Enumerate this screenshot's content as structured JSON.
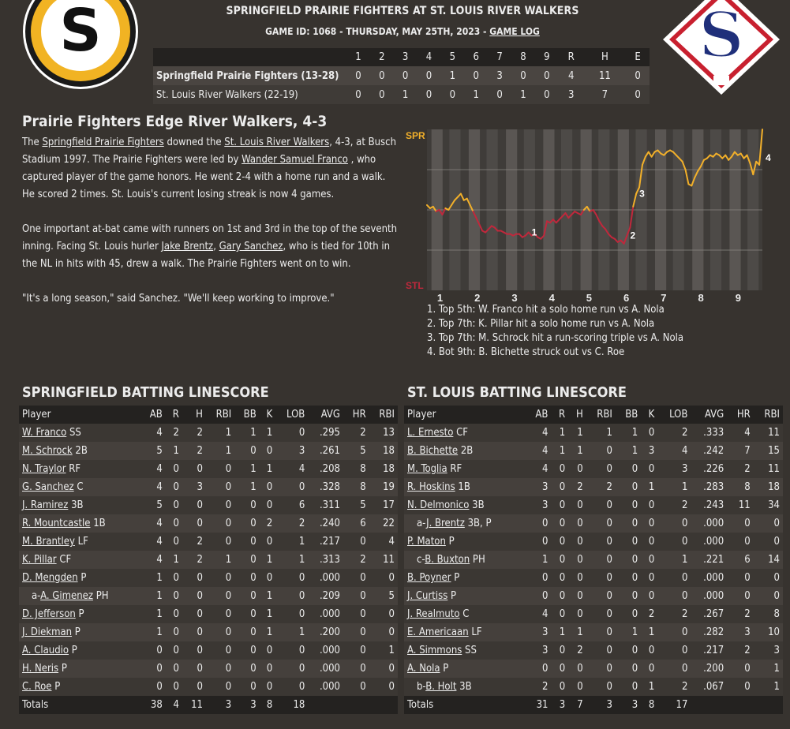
{
  "header": {
    "title": "SPRINGFIELD PRAIRIE FIGHTERS AT ST. LOUIS RIVER WALKERS",
    "subtitle_prefix": "GAME ID: 1068 - THURSDAY, MAY 25TH, 2023 - ",
    "game_log_link": "GAME LOG",
    "left_logo_letter": "S",
    "right_logo_letter": "S"
  },
  "linescore": {
    "columns": [
      "",
      "1",
      "2",
      "3",
      "4",
      "5",
      "6",
      "7",
      "8",
      "9",
      "R",
      "H",
      "E"
    ],
    "rows": [
      {
        "team": "Springfield Prairie Fighters (13-28)",
        "cells": [
          "0",
          "0",
          "0",
          "0",
          "1",
          "0",
          "3",
          "0",
          "0",
          "4",
          "11",
          "0"
        ]
      },
      {
        "team": "St. Louis River Walkers (22-19)",
        "cells": [
          "0",
          "0",
          "1",
          "0",
          "0",
          "1",
          "0",
          "1",
          "0",
          "3",
          "7",
          "0"
        ]
      }
    ]
  },
  "story": {
    "headline": "Prairie Fighters Edge River Walkers, 4-3",
    "p1": [
      "The ",
      "Springfield Prairie Fighters",
      " downed the ",
      "St. Louis River Walkers",
      ", 4-3, at Busch Stadium 1997. The Prairie Fighters were led by ",
      "Wander Samuel Franco",
      " , who captured player of the game honors. He went 2-4 with a home run and a walk. He scored 2 times. St. Louis's current losing streak is now 4 games."
    ],
    "p2": [
      "One important at-bat came with runners on 1st and 3rd in the top of the seventh inning. Facing St. Louis hurler ",
      "Jake Brentz",
      ", ",
      "Gary Sanchez",
      ", who is tied for 10th in the NL in hits with 45, drew a walk. The Prairie Fighters went on to win."
    ],
    "p3": "\"It's a long season,\" said Sanchez. \"We'll keep working to improve.\""
  },
  "chart_data": {
    "type": "line",
    "title": "",
    "top_label": "SPR",
    "bottom_label": "STL",
    "innings": [
      "1",
      "2",
      "3",
      "4",
      "5",
      "6",
      "7",
      "8",
      "9"
    ],
    "ylim": [
      0,
      1
    ],
    "points": [
      0.53,
      0.51,
      0.52,
      0.49,
      0.5,
      0.47,
      0.51,
      0.5,
      0.53,
      0.56,
      0.58,
      0.6,
      0.56,
      0.57,
      0.53,
      0.49,
      0.45,
      0.41,
      0.37,
      0.36,
      0.38,
      0.4,
      0.39,
      0.37,
      0.37,
      0.36,
      0.35,
      0.35,
      0.34,
      0.35,
      0.35,
      0.33,
      0.34,
      0.36,
      0.34,
      0.35,
      0.33,
      0.32,
      0.34,
      0.43,
      0.42,
      0.44,
      0.42,
      0.44,
      0.46,
      0.48,
      0.45,
      0.47,
      0.49,
      0.48,
      0.47,
      0.5,
      0.52,
      0.49,
      0.5,
      0.47,
      0.43,
      0.4,
      0.38,
      0.35,
      0.33,
      0.32,
      0.3,
      0.31,
      0.29,
      0.34,
      0.39,
      0.52,
      0.6,
      0.64,
      0.78,
      0.83,
      0.86,
      0.83,
      0.86,
      0.87,
      0.85,
      0.84,
      0.86,
      0.87,
      0.86,
      0.84,
      0.82,
      0.8,
      0.75,
      0.66,
      0.65,
      0.7,
      0.74,
      0.77,
      0.81,
      0.82,
      0.84,
      0.83,
      0.85,
      0.84,
      0.82,
      0.84,
      0.81,
      0.83,
      0.86,
      0.84,
      0.85,
      0.82,
      0.84,
      0.79,
      0.72,
      0.8,
      0.78,
      1.0
    ],
    "annotations": [
      {
        "label": "1",
        "index": 33
      },
      {
        "label": "2",
        "index": 65
      },
      {
        "label": "3",
        "index": 68
      },
      {
        "label": "4",
        "index": 109
      }
    ],
    "colors": {
      "spr": "#f2b02a",
      "stl": "#c0283c",
      "band": "#5a5653",
      "plot": "#3f3c39"
    }
  },
  "key_events": [
    "1. Top 5th: W. Franco hit a solo home run vs A. Nola",
    "2. Top 7th: K. Pillar hit a solo home run vs A. Nola",
    "3. Top 7th: M. Schrock hit a run-scoring triple vs A. Nola",
    "4. Bot 9th: B. Bichette struck out vs C. Roe"
  ],
  "spr_batting": {
    "title": "SPRINGFIELD BATTING LINESCORE",
    "headers": [
      "Player",
      "AB",
      "R",
      "H",
      "RBI",
      "BB",
      "K",
      "LOB",
      "AVG",
      "HR",
      "RBI"
    ],
    "rows": [
      {
        "prefix": "",
        "name": "W. Franco",
        "pos": "SS",
        "stats": [
          "4",
          "2",
          "2",
          "1",
          "1",
          "1",
          "0",
          ".295",
          "2",
          "13"
        ]
      },
      {
        "prefix": "",
        "name": "M. Schrock",
        "pos": "2B",
        "stats": [
          "5",
          "1",
          "2",
          "1",
          "0",
          "0",
          "3",
          ".261",
          "5",
          "18"
        ]
      },
      {
        "prefix": "",
        "name": "N. Traylor",
        "pos": "RF",
        "stats": [
          "4",
          "0",
          "0",
          "0",
          "1",
          "1",
          "4",
          ".208",
          "8",
          "18"
        ]
      },
      {
        "prefix": "",
        "name": "G. Sanchez",
        "pos": "C",
        "stats": [
          "4",
          "0",
          "3",
          "0",
          "1",
          "0",
          "0",
          ".328",
          "8",
          "19"
        ]
      },
      {
        "prefix": "",
        "name": "J. Ramirez",
        "pos": "3B",
        "stats": [
          "5",
          "0",
          "0",
          "0",
          "0",
          "0",
          "6",
          ".311",
          "5",
          "17"
        ]
      },
      {
        "prefix": "",
        "name": "R. Mountcastle",
        "pos": "1B",
        "stats": [
          "4",
          "0",
          "0",
          "0",
          "0",
          "2",
          "2",
          ".240",
          "6",
          "22"
        ]
      },
      {
        "prefix": "",
        "name": "M. Brantley",
        "pos": "LF",
        "stats": [
          "4",
          "0",
          "2",
          "0",
          "0",
          "0",
          "1",
          ".217",
          "0",
          "4"
        ]
      },
      {
        "prefix": "",
        "name": "K. Pillar",
        "pos": "CF",
        "stats": [
          "4",
          "1",
          "2",
          "1",
          "0",
          "1",
          "1",
          ".313",
          "2",
          "11"
        ]
      },
      {
        "prefix": "",
        "name": "D. Mengden",
        "pos": "P",
        "stats": [
          "1",
          "0",
          "0",
          "0",
          "0",
          "0",
          "0",
          ".000",
          "0",
          "0"
        ]
      },
      {
        "prefix": "a-",
        "name": "A. Gimenez",
        "pos": "PH",
        "stats": [
          "1",
          "0",
          "0",
          "0",
          "0",
          "1",
          "0",
          ".209",
          "0",
          "5"
        ]
      },
      {
        "prefix": "",
        "name": "D. Jefferson",
        "pos": "P",
        "stats": [
          "1",
          "0",
          "0",
          "0",
          "0",
          "1",
          "0",
          ".000",
          "0",
          "0"
        ]
      },
      {
        "prefix": "",
        "name": "J. Diekman",
        "pos": "P",
        "stats": [
          "1",
          "0",
          "0",
          "0",
          "0",
          "1",
          "1",
          ".200",
          "0",
          "0"
        ]
      },
      {
        "prefix": "",
        "name": "A. Claudio",
        "pos": "P",
        "stats": [
          "0",
          "0",
          "0",
          "0",
          "0",
          "0",
          "0",
          ".000",
          "0",
          "1"
        ]
      },
      {
        "prefix": "",
        "name": "H. Neris",
        "pos": "P",
        "stats": [
          "0",
          "0",
          "0",
          "0",
          "0",
          "0",
          "0",
          ".000",
          "0",
          "0"
        ]
      },
      {
        "prefix": "",
        "name": "C. Roe",
        "pos": "P",
        "stats": [
          "0",
          "0",
          "0",
          "0",
          "0",
          "0",
          "0",
          ".000",
          "0",
          "0"
        ]
      }
    ],
    "totals": {
      "label": "Totals",
      "stats": [
        "38",
        "4",
        "11",
        "3",
        "3",
        "8",
        "18",
        "",
        "",
        ""
      ]
    }
  },
  "stl_batting": {
    "title": "ST. LOUIS BATTING LINESCORE",
    "headers": [
      "Player",
      "AB",
      "R",
      "H",
      "RBI",
      "BB",
      "K",
      "LOB",
      "AVG",
      "HR",
      "RBI"
    ],
    "rows": [
      {
        "prefix": "",
        "name": "L. Ernesto",
        "pos": "CF",
        "stats": [
          "4",
          "1",
          "1",
          "1",
          "1",
          "0",
          "2",
          ".333",
          "4",
          "11"
        ]
      },
      {
        "prefix": "",
        "name": "B. Bichette",
        "pos": "2B",
        "stats": [
          "4",
          "1",
          "1",
          "0",
          "1",
          "3",
          "4",
          ".242",
          "7",
          "15"
        ]
      },
      {
        "prefix": "",
        "name": "M. Toglia",
        "pos": "RF",
        "stats": [
          "4",
          "0",
          "0",
          "0",
          "0",
          "0",
          "3",
          ".226",
          "2",
          "11"
        ]
      },
      {
        "prefix": "",
        "name": "R. Hoskins",
        "pos": "1B",
        "stats": [
          "3",
          "0",
          "2",
          "2",
          "0",
          "1",
          "1",
          ".283",
          "8",
          "18"
        ]
      },
      {
        "prefix": "",
        "name": "N. Delmonico",
        "pos": "3B",
        "stats": [
          "3",
          "0",
          "0",
          "0",
          "0",
          "0",
          "2",
          ".243",
          "11",
          "34"
        ]
      },
      {
        "prefix": "a-",
        "name": "J. Brentz",
        "pos": "3B, P",
        "stats": [
          "0",
          "0",
          "0",
          "0",
          "0",
          "0",
          "0",
          ".000",
          "0",
          "0"
        ]
      },
      {
        "prefix": "",
        "name": "P. Maton",
        "pos": "P",
        "stats": [
          "0",
          "0",
          "0",
          "0",
          "0",
          "0",
          "0",
          ".000",
          "0",
          "0"
        ]
      },
      {
        "prefix": "c-",
        "name": "B. Buxton",
        "pos": "PH",
        "stats": [
          "1",
          "0",
          "0",
          "0",
          "0",
          "0",
          "1",
          ".221",
          "6",
          "14"
        ]
      },
      {
        "prefix": "",
        "name": "B. Poyner",
        "pos": "P",
        "stats": [
          "0",
          "0",
          "0",
          "0",
          "0",
          "0",
          "0",
          ".000",
          "0",
          "0"
        ]
      },
      {
        "prefix": "",
        "name": "J. Curtiss",
        "pos": "P",
        "stats": [
          "0",
          "0",
          "0",
          "0",
          "0",
          "0",
          "0",
          ".000",
          "0",
          "0"
        ]
      },
      {
        "prefix": "",
        "name": "J. Realmuto",
        "pos": "C",
        "stats": [
          "4",
          "0",
          "0",
          "0",
          "0",
          "2",
          "2",
          ".267",
          "2",
          "8"
        ]
      },
      {
        "prefix": "",
        "name": "E. Americaan",
        "pos": "LF",
        "stats": [
          "3",
          "1",
          "1",
          "0",
          "1",
          "1",
          "0",
          ".282",
          "3",
          "10"
        ]
      },
      {
        "prefix": "",
        "name": "A. Simmons",
        "pos": "SS",
        "stats": [
          "3",
          "0",
          "2",
          "0",
          "0",
          "0",
          "0",
          ".217",
          "2",
          "3"
        ]
      },
      {
        "prefix": "",
        "name": "A. Nola",
        "pos": "P",
        "stats": [
          "0",
          "0",
          "0",
          "0",
          "0",
          "0",
          "0",
          ".200",
          "0",
          "1"
        ]
      },
      {
        "prefix": "b-",
        "name": "B. Holt",
        "pos": "3B",
        "stats": [
          "2",
          "0",
          "0",
          "0",
          "0",
          "1",
          "2",
          ".067",
          "0",
          "1"
        ]
      }
    ],
    "totals": {
      "label": "Totals",
      "stats": [
        "31",
        "3",
        "7",
        "3",
        "3",
        "8",
        "17",
        "",
        "",
        ""
      ]
    }
  }
}
